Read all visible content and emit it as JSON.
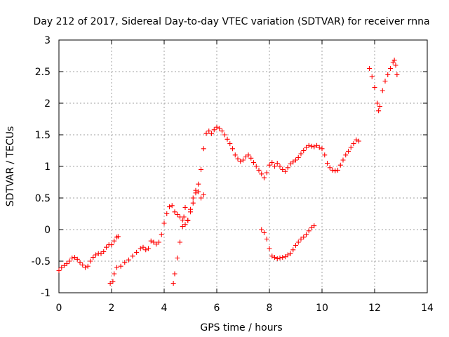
{
  "chart_data": {
    "type": "scatter",
    "title": "Day 212 of 2017, Sidereal Day-to-day VTEC variation (SDTVAR) for receiver rnna",
    "xlabel": "GPS time / hours",
    "ylabel": "SDTVAR / TECUs",
    "xlim": [
      0,
      14
    ],
    "ylim": [
      -1,
      3
    ],
    "xticks": [
      "0",
      "2",
      "4",
      "6",
      "8",
      "10",
      "12",
      "14"
    ],
    "yticks": [
      "-1",
      "-0.5",
      "0",
      "0.5",
      "1",
      "1.5",
      "2",
      "2.5",
      "3"
    ],
    "grid": true,
    "marker": "plus",
    "color": "#ff0000",
    "series": [
      {
        "points": [
          [
            0.0,
            -0.65
          ],
          [
            0.1,
            -0.6
          ],
          [
            0.2,
            -0.57
          ],
          [
            0.3,
            -0.54
          ],
          [
            0.4,
            -0.5
          ],
          [
            0.5,
            -0.45
          ],
          [
            0.6,
            -0.44
          ],
          [
            0.7,
            -0.47
          ],
          [
            0.8,
            -0.52
          ],
          [
            0.9,
            -0.56
          ],
          [
            1.0,
            -0.6
          ],
          [
            1.1,
            -0.58
          ],
          [
            1.2,
            -0.5
          ],
          [
            1.3,
            -0.44
          ],
          [
            1.4,
            -0.4
          ],
          [
            1.5,
            -0.38
          ],
          [
            1.6,
            -0.38
          ],
          [
            1.7,
            -0.35
          ],
          [
            1.8,
            -0.28
          ],
          [
            1.9,
            -0.24
          ],
          [
            2.0,
            -0.24
          ],
          [
            2.1,
            -0.18
          ],
          [
            2.2,
            -0.12
          ],
          [
            2.25,
            -0.11
          ]
        ]
      },
      {
        "points": [
          [
            1.95,
            -0.85
          ],
          [
            2.05,
            -0.82
          ],
          [
            2.1,
            -0.7
          ],
          [
            2.2,
            -0.6
          ],
          [
            2.35,
            -0.58
          ],
          [
            2.5,
            -0.52
          ],
          [
            2.65,
            -0.48
          ],
          [
            2.8,
            -0.42
          ],
          [
            2.95,
            -0.36
          ],
          [
            3.1,
            -0.3
          ],
          [
            3.2,
            -0.28
          ],
          [
            3.3,
            -0.32
          ],
          [
            3.4,
            -0.3
          ],
          [
            3.5,
            -0.18
          ],
          [
            3.6,
            -0.2
          ],
          [
            3.7,
            -0.23
          ],
          [
            3.8,
            -0.2
          ],
          [
            3.9,
            -0.08
          ],
          [
            4.0,
            0.1
          ],
          [
            4.1,
            0.25
          ],
          [
            4.2,
            0.36
          ],
          [
            4.3,
            0.38
          ],
          [
            4.4,
            0.28
          ],
          [
            4.5,
            0.24
          ],
          [
            4.6,
            0.2
          ],
          [
            4.7,
            0.15
          ],
          [
            4.8,
            0.08
          ],
          [
            4.9,
            0.14
          ],
          [
            5.0,
            0.28
          ],
          [
            5.1,
            0.42
          ],
          [
            5.2,
            0.58
          ],
          [
            5.3,
            0.72
          ],
          [
            5.4,
            0.95
          ],
          [
            5.5,
            1.28
          ],
          [
            5.6,
            1.52
          ],
          [
            5.7,
            1.56
          ],
          [
            5.8,
            1.52
          ],
          [
            5.9,
            1.58
          ],
          [
            6.0,
            1.62
          ],
          [
            6.1,
            1.6
          ],
          [
            6.2,
            1.56
          ],
          [
            6.3,
            1.5
          ],
          [
            6.4,
            1.43
          ],
          [
            6.5,
            1.36
          ],
          [
            6.6,
            1.28
          ],
          [
            6.7,
            1.18
          ],
          [
            6.8,
            1.12
          ],
          [
            6.9,
            1.08
          ],
          [
            7.0,
            1.1
          ],
          [
            7.1,
            1.15
          ],
          [
            7.2,
            1.18
          ],
          [
            7.3,
            1.13
          ],
          [
            7.4,
            1.06
          ],
          [
            7.5,
            1.0
          ],
          [
            7.6,
            0.94
          ],
          [
            7.7,
            0.88
          ],
          [
            7.8,
            0.82
          ],
          [
            7.9,
            0.9
          ],
          [
            8.0,
            1.02
          ],
          [
            8.1,
            1.06
          ],
          [
            8.2,
            1.0
          ],
          [
            8.3,
            1.05
          ],
          [
            8.4,
            1.0
          ],
          [
            8.5,
            0.95
          ],
          [
            8.6,
            0.92
          ],
          [
            8.7,
            0.98
          ],
          [
            8.8,
            1.04
          ],
          [
            8.9,
            1.07
          ],
          [
            9.0,
            1.1
          ],
          [
            9.1,
            1.14
          ],
          [
            9.2,
            1.2
          ],
          [
            9.3,
            1.25
          ],
          [
            9.4,
            1.3
          ],
          [
            9.5,
            1.33
          ],
          [
            9.6,
            1.32
          ],
          [
            9.7,
            1.31
          ],
          [
            9.8,
            1.33
          ],
          [
            9.9,
            1.3
          ],
          [
            10.0,
            1.28
          ],
          [
            10.1,
            1.18
          ],
          [
            10.2,
            1.05
          ],
          [
            10.3,
            0.98
          ],
          [
            10.4,
            0.94
          ],
          [
            10.5,
            0.93
          ],
          [
            10.6,
            0.94
          ],
          [
            10.7,
            1.02
          ],
          [
            10.8,
            1.1
          ],
          [
            10.9,
            1.18
          ],
          [
            11.0,
            1.24
          ],
          [
            11.1,
            1.3
          ],
          [
            11.2,
            1.36
          ],
          [
            11.3,
            1.42
          ],
          [
            11.4,
            1.4
          ]
        ]
      },
      {
        "points": [
          [
            4.35,
            -0.85
          ],
          [
            4.4,
            -0.7
          ],
          [
            4.5,
            -0.45
          ],
          [
            4.6,
            -0.2
          ],
          [
            4.7,
            0.05
          ],
          [
            4.75,
            0.2
          ],
          [
            4.8,
            0.35
          ],
          [
            4.9,
            0.15
          ],
          [
            5.0,
            0.32
          ],
          [
            5.1,
            0.5
          ],
          [
            5.2,
            0.62
          ],
          [
            5.3,
            0.6
          ],
          [
            5.4,
            0.5
          ],
          [
            5.5,
            0.55
          ]
        ]
      },
      {
        "points": [
          [
            7.7,
            0.0
          ],
          [
            7.8,
            -0.05
          ],
          [
            7.9,
            -0.15
          ],
          [
            8.0,
            -0.3
          ],
          [
            8.1,
            -0.42
          ],
          [
            8.2,
            -0.44
          ],
          [
            8.3,
            -0.46
          ],
          [
            8.4,
            -0.45
          ],
          [
            8.5,
            -0.44
          ],
          [
            8.6,
            -0.43
          ],
          [
            8.7,
            -0.4
          ],
          [
            8.8,
            -0.38
          ],
          [
            8.9,
            -0.32
          ],
          [
            9.0,
            -0.25
          ],
          [
            9.1,
            -0.2
          ],
          [
            9.2,
            -0.15
          ],
          [
            9.3,
            -0.12
          ],
          [
            9.4,
            -0.08
          ],
          [
            9.5,
            -0.02
          ],
          [
            9.6,
            0.03
          ],
          [
            9.7,
            0.06
          ]
        ]
      },
      {
        "points": [
          [
            11.8,
            2.55
          ],
          [
            11.9,
            2.42
          ],
          [
            12.0,
            2.25
          ],
          [
            12.1,
            2.0
          ],
          [
            12.15,
            1.88
          ],
          [
            12.2,
            1.95
          ],
          [
            12.3,
            2.2
          ],
          [
            12.4,
            2.35
          ],
          [
            12.5,
            2.45
          ],
          [
            12.6,
            2.55
          ],
          [
            12.7,
            2.65
          ],
          [
            12.75,
            2.68
          ],
          [
            12.8,
            2.6
          ],
          [
            12.85,
            2.45
          ]
        ]
      }
    ]
  }
}
